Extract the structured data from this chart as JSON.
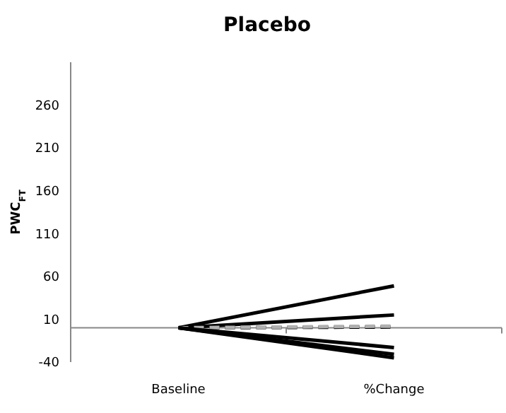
{
  "chart_data": {
    "type": "line",
    "title": "Placebo",
    "ylabel": "PWC$_{FT}$",
    "categories": [
      "Baseline",
      "%Change"
    ],
    "series": [
      {
        "color": "#000000",
        "values": [
          0,
          49
        ]
      },
      {
        "color": "#000000",
        "values": [
          0,
          15
        ]
      },
      {
        "color": "#000000",
        "values": [
          0,
          1
        ],
        "line_style": "dashed"
      },
      {
        "color": "#b0b0b0",
        "values": [
          0,
          2
        ],
        "line_style": "dashed"
      },
      {
        "color": "#000000",
        "values": [
          0,
          -23
        ]
      },
      {
        "color": "#000000",
        "values": [
          0,
          -31
        ]
      },
      {
        "color": "#000000",
        "values": [
          0,
          -35
        ]
      }
    ],
    "ylim": [
      -40,
      310
    ],
    "yticks": [
      -40,
      10,
      60,
      110,
      160,
      210,
      260
    ]
  }
}
